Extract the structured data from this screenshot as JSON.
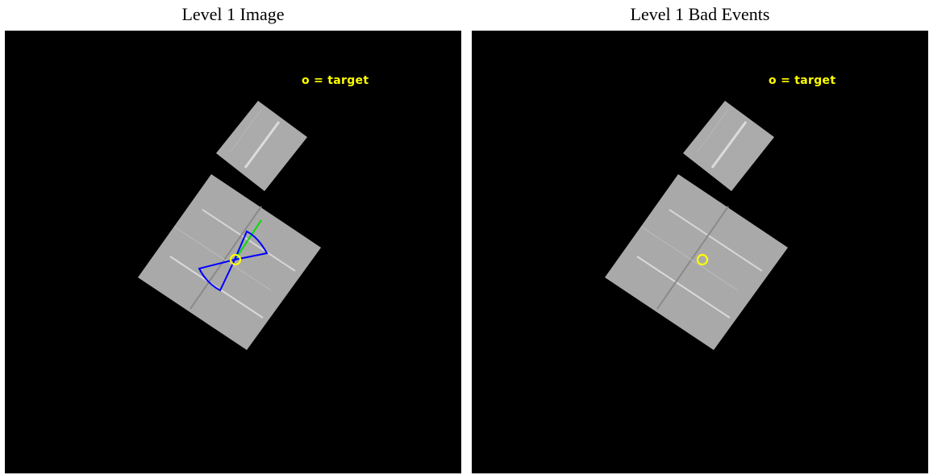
{
  "panels": [
    {
      "title": "Level 1 Image",
      "legend": "o = target"
    },
    {
      "title": "Level 1 Bad Events",
      "legend": "o = target"
    }
  ],
  "colors": {
    "background": "#000000",
    "chip": "#a8a8a8",
    "target_marker": "#ffff00",
    "legend_text": "#ffff00",
    "region_outline": "#0000ff",
    "direction_line": "#00dd00"
  }
}
